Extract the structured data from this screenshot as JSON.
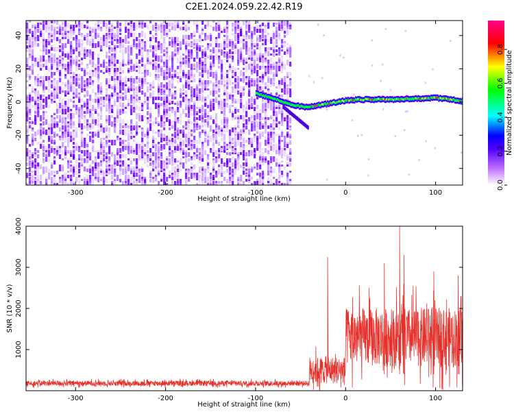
{
  "title": "C2E1.2024.059.22.42.R19",
  "chart_data": [
    {
      "type": "heatmap",
      "xlabel": "Height of straight line (km)",
      "ylabel": "Frequency (Hz)",
      "xlim": [
        -355,
        130
      ],
      "ylim": [
        -50,
        49
      ],
      "xticks": [
        -300,
        -200,
        -100,
        0,
        100
      ],
      "yticks": [
        -40,
        -20,
        0,
        20,
        40
      ],
      "noise_region_x": [
        -355,
        -60
      ],
      "signal_track": [
        {
          "x": -100,
          "y": 5
        },
        {
          "x": -80,
          "y": 2
        },
        {
          "x": -60,
          "y": -2
        },
        {
          "x": -45,
          "y": -3
        },
        {
          "x": -30,
          "y": -2
        },
        {
          "x": -10,
          "y": 0
        },
        {
          "x": 0,
          "y": 1
        },
        {
          "x": 20,
          "y": 1.5
        },
        {
          "x": 50,
          "y": 1.5
        },
        {
          "x": 80,
          "y": 2
        },
        {
          "x": 100,
          "y": 2.5
        },
        {
          "x": 130,
          "y": 0.5
        }
      ],
      "colorbar": {
        "label": "Normalized spectral amplitude",
        "range": [
          0,
          1
        ],
        "ticks": [
          "0.0",
          "0.2",
          "0.4",
          "0.6",
          "0.8"
        ],
        "colors": [
          "#ffffff",
          "#7a00ff",
          "#0000ff",
          "#00ffff",
          "#00ff00",
          "#ffff00",
          "#ff0000",
          "#ff0088"
        ]
      }
    },
    {
      "type": "line",
      "xlabel": "Height of straight line (km)",
      "ylabel": "SNR (10 * v/v)",
      "xlim": [
        -355,
        130
      ],
      "ylim": [
        0,
        4000
      ],
      "xticks": [
        -300,
        -200,
        -100,
        0,
        100
      ],
      "yticks": [
        1000,
        2000,
        3000,
        4000
      ],
      "color": "#e8302a",
      "segments": [
        {
          "x_range": [
            -355,
            -40
          ],
          "baseline": 180,
          "spread": 110
        },
        {
          "x_range": [
            -40,
            0
          ],
          "baseline": 500,
          "spread": 600
        },
        {
          "x_range": [
            0,
            130
          ],
          "baseline": 1300,
          "spread": 1300
        }
      ],
      "spikes": [
        {
          "x": -20,
          "y": 3250
        },
        {
          "x": 43,
          "y": 3100
        },
        {
          "x": 60,
          "y": 4000
        },
        {
          "x": 65,
          "y": 3300
        },
        {
          "x": 98,
          "y": 2900
        },
        {
          "x": 125,
          "y": 2800
        }
      ]
    }
  ]
}
